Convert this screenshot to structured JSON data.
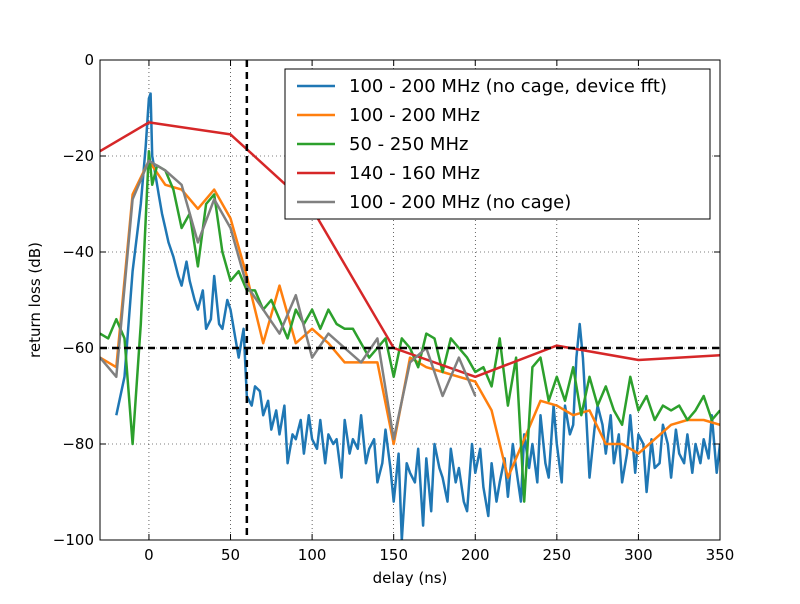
{
  "chart_data": {
    "type": "line",
    "title": "",
    "xlabel": "delay (ns)",
    "ylabel": "return loss (dB)",
    "xlim": [
      -30,
      350
    ],
    "ylim": [
      -100,
      0
    ],
    "xticks": [
      0,
      50,
      100,
      150,
      200,
      250,
      300,
      350
    ],
    "yticks": [
      0,
      -20,
      -40,
      -60,
      -80,
      -100
    ],
    "xtick_labels": [
      "0",
      "50",
      "100",
      "150",
      "200",
      "250",
      "300",
      "350"
    ],
    "ytick_labels": [
      "0",
      "−20",
      "−40",
      "−60",
      "−80",
      "−100"
    ],
    "grid": true,
    "legend_position": "upper-right",
    "reference_lines": [
      {
        "axis": "x",
        "value": 60,
        "style": "dashed",
        "color": "#000000"
      },
      {
        "axis": "y",
        "value": -60,
        "style": "dashed",
        "color": "#000000"
      }
    ],
    "series": [
      {
        "name": "100 - 200 MHz (no cage, device fft)",
        "color": "#1f77b4",
        "x": [
          -20,
          -15,
          -10,
          -5,
          -2,
          0,
          1,
          2,
          4,
          6,
          8,
          10,
          12,
          15,
          18,
          20,
          23,
          25,
          28,
          30,
          33,
          35,
          38,
          40,
          43,
          45,
          48,
          50,
          53,
          55,
          58,
          60,
          63,
          65,
          68,
          70,
          73,
          75,
          78,
          80,
          83,
          85,
          88,
          90,
          93,
          95,
          98,
          100,
          103,
          105,
          108,
          110,
          113,
          115,
          118,
          120,
          123,
          125,
          128,
          130,
          133,
          135,
          138,
          140,
          143,
          145,
          148,
          150,
          153,
          155,
          158,
          160,
          163,
          165,
          168,
          170,
          173,
          175,
          178,
          180,
          183,
          185,
          188,
          190,
          193,
          195,
          198,
          200,
          203,
          205,
          208,
          210,
          213,
          215,
          218,
          220,
          223,
          225,
          228,
          230,
          233,
          235,
          238,
          240,
          243,
          245,
          248,
          250,
          253,
          255,
          258,
          260,
          262,
          264,
          266,
          268,
          270,
          273,
          275,
          278,
          280,
          283,
          285,
          288,
          290,
          293,
          295,
          298,
          300,
          303,
          305,
          308,
          310,
          313,
          315,
          318,
          320,
          323,
          325,
          328,
          330,
          333,
          335,
          338,
          340,
          343,
          345,
          348,
          350
        ],
        "y": [
          -74,
          -66,
          -44,
          -30,
          -18,
          -8,
          -7,
          -20,
          -24,
          -28,
          -32,
          -35,
          -38,
          -41,
          -45,
          -47,
          -42,
          -46,
          -50,
          -52,
          -48,
          -56,
          -54,
          -45,
          -55,
          -56,
          -50,
          -52,
          -58,
          -62,
          -56,
          -70,
          -72,
          -68,
          -69,
          -74,
          -71,
          -77,
          -73,
          -78,
          -72,
          -84,
          -78,
          -79,
          -75,
          -82,
          -74,
          -79,
          -81,
          -75,
          -84,
          -78,
          -80,
          -79,
          -87,
          -75,
          -82,
          -79,
          -81,
          -74,
          -84,
          -81,
          -79,
          -88,
          -84,
          -77,
          -85,
          -92,
          -82,
          -100,
          -84,
          -86,
          -88,
          -81,
          -97,
          -83,
          -94,
          -80,
          -85,
          -87,
          -92,
          -81,
          -88,
          -85,
          -92,
          -94,
          -80,
          -86,
          -81,
          -89,
          -95,
          -84,
          -92,
          -88,
          -83,
          -91,
          -80,
          -85,
          -92,
          -78,
          -85,
          -80,
          -88,
          -74,
          -84,
          -87,
          -72,
          -80,
          -88,
          -72,
          -78,
          -76,
          -62,
          -55,
          -62,
          -74,
          -87,
          -77,
          -72,
          -76,
          -82,
          -74,
          -84,
          -78,
          -88,
          -82,
          -74,
          -86,
          -78,
          -80,
          -90,
          -79,
          -85,
          -84,
          -76,
          -80,
          -87,
          -77,
          -82,
          -84,
          -78,
          -86,
          -80,
          -84,
          -79,
          -83,
          -74,
          -86,
          -80
        ]
      },
      {
        "name": "100 - 200 MHz",
        "color": "#ff7f0e",
        "x": [
          -30,
          -20,
          -10,
          0,
          10,
          20,
          30,
          40,
          50,
          60,
          70,
          80,
          90,
          100,
          110,
          120,
          130,
          140,
          150,
          160,
          170,
          180,
          190,
          200,
          210,
          220,
          230,
          240,
          250,
          260,
          270,
          280,
          290,
          300,
          310,
          320,
          330,
          340,
          350
        ],
        "y": [
          -62,
          -64,
          -28,
          -21,
          -26,
          -27,
          -31,
          -27,
          -33,
          -45,
          -59,
          -47,
          -59,
          -56,
          -59,
          -63,
          -63,
          -63,
          -80,
          -62,
          -64,
          -65,
          -66,
          -67,
          -73,
          -87,
          -79,
          -71,
          -72,
          -74,
          -73,
          -80,
          -80,
          -82,
          -79,
          -76,
          -75,
          -75,
          -76
        ]
      },
      {
        "name": "50 - 250 MHz",
        "color": "#2ca02c",
        "x": [
          -30,
          -25,
          -20,
          -15,
          -10,
          -5,
          0,
          2,
          5,
          10,
          15,
          20,
          25,
          30,
          35,
          40,
          45,
          50,
          55,
          60,
          65,
          70,
          75,
          80,
          85,
          90,
          95,
          100,
          105,
          110,
          115,
          120,
          125,
          130,
          135,
          140,
          145,
          150,
          155,
          160,
          165,
          170,
          175,
          180,
          185,
          190,
          195,
          200,
          205,
          210,
          215,
          220,
          225,
          230,
          235,
          240,
          245,
          250,
          255,
          260,
          265,
          270,
          275,
          280,
          285,
          290,
          295,
          300,
          305,
          310,
          315,
          320,
          325,
          330,
          335,
          340,
          345,
          350
        ],
        "y": [
          -57,
          -58,
          -54,
          -58,
          -80,
          -55,
          -19,
          -26,
          -22,
          -23,
          -27,
          -35,
          -32,
          -43,
          -30,
          -28,
          -40,
          -46,
          -44,
          -48,
          -48,
          -52,
          -50,
          -54,
          -58,
          -52,
          -55,
          -52,
          -56,
          -52,
          -55,
          -56,
          -56,
          -59,
          -62,
          -60,
          -58,
          -66,
          -58,
          -60,
          -64,
          -57,
          -58,
          -65,
          -58,
          -60,
          -62,
          -65,
          -64,
          -68,
          -58,
          -72,
          -62,
          -92,
          -64,
          -62,
          -71,
          -66,
          -71,
          -64,
          -74,
          -66,
          -72,
          -68,
          -73,
          -76,
          -66,
          -73,
          -70,
          -75,
          -72,
          -73,
          -72,
          -75,
          -73,
          -70,
          -75,
          -73
        ]
      },
      {
        "name": "140 - 160 MHz",
        "color": "#d62728",
        "x": [
          -30,
          0,
          50,
          100,
          150,
          200,
          250,
          300,
          350
        ],
        "y": [
          -19,
          -13,
          -15.5,
          -31,
          -60,
          -66,
          -59.5,
          -62.5,
          -61.5
        ]
      },
      {
        "name": "100 - 200 MHz (no cage)",
        "color": "#808080",
        "x": [
          -30,
          -20,
          -10,
          0,
          10,
          20,
          30,
          40,
          50,
          60,
          70,
          80,
          90,
          100,
          110,
          120,
          130,
          140,
          150,
          160,
          170,
          180,
          190,
          200
        ],
        "y": [
          -62,
          -66,
          -29,
          -21,
          -23,
          -26,
          -38,
          -29,
          -35,
          -47,
          -52,
          -57,
          -49,
          -62,
          -57,
          -60,
          -63,
          -58,
          -79,
          -63,
          -60,
          -70,
          -62,
          -70
        ]
      }
    ]
  }
}
